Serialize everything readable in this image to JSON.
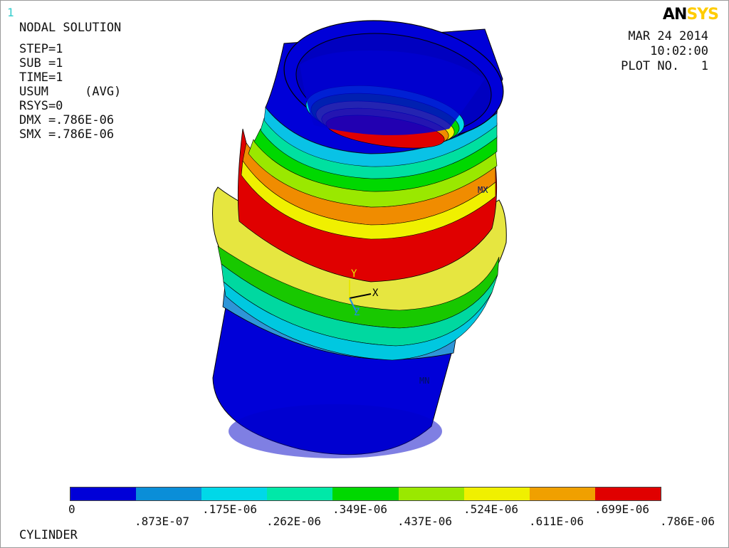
{
  "window_number": "1",
  "header": {
    "solution_type": "NODAL SOLUTION",
    "lines": [
      "STEP=1",
      "SUB =1",
      "TIME=1",
      "USUM     (AVG)",
      "RSYS=0",
      "DMX =.786E-06",
      "SMX =.786E-06"
    ]
  },
  "logo": {
    "part1": "AN",
    "part2": "SYS"
  },
  "plot_info": {
    "date": "MAR 24 2014",
    "time": "10:02:00",
    "plot_no": "PLOT NO.   1"
  },
  "model": {
    "triad_labels": {
      "y": "Y",
      "x": "X",
      "z": "Z"
    },
    "mx_label": "MX",
    "mn_label": "MN"
  },
  "legend": {
    "colors": [
      "#0000d8",
      "#0a8ed8",
      "#00d8e8",
      "#00e8a8",
      "#00d800",
      "#9ae800",
      "#f0f000",
      "#f0a000",
      "#e00000"
    ],
    "upper_ticks": [
      "0",
      ".175E-06",
      ".349E-06",
      ".524E-06",
      ".699E-06"
    ],
    "lower_ticks": [
      ".873E-07",
      ".262E-06",
      ".437E-06",
      ".611E-06",
      ".786E-06"
    ]
  },
  "footer": {
    "title": "CYLINDER"
  }
}
